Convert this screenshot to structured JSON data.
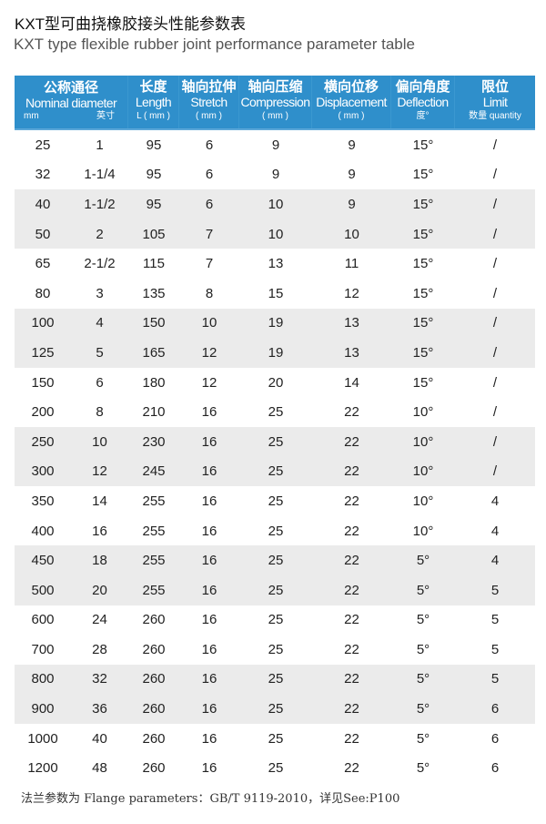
{
  "title_cn": "KXT型可曲挠橡胶接头性能参数表",
  "title_en": "KXT type flexible rubber joint performance parameter table",
  "header": {
    "nominal": {
      "cn": "公称通径",
      "en": "Nominal diameter",
      "mm": "mm",
      "inch": "英寸"
    },
    "length": {
      "cn": "长度",
      "en": "Length",
      "unit": "L ( mm )"
    },
    "stretch": {
      "cn": "轴向拉伸",
      "en": "Stretch",
      "unit": "( mm )"
    },
    "compression": {
      "cn": "轴向压缩",
      "en": "Compression",
      "unit": "( mm )"
    },
    "displacement": {
      "cn": "横向位移",
      "en": "Displacement",
      "unit": "( mm )"
    },
    "deflection": {
      "cn": "偏向角度",
      "en": "Deflection",
      "unit": "度°"
    },
    "limit": {
      "cn": "限位",
      "en": "Limit",
      "unit": "数量 quantity"
    }
  },
  "rows": [
    [
      "25",
      "1",
      "95",
      "6",
      "9",
      "9",
      "15°",
      "/"
    ],
    [
      "32",
      "1-1/4",
      "95",
      "6",
      "9",
      "9",
      "15°",
      "/"
    ],
    [
      "40",
      "1-1/2",
      "95",
      "6",
      "10",
      "9",
      "15°",
      "/"
    ],
    [
      "50",
      "2",
      "105",
      "7",
      "10",
      "10",
      "15°",
      "/"
    ],
    [
      "65",
      "2-1/2",
      "115",
      "7",
      "13",
      "11",
      "15°",
      "/"
    ],
    [
      "80",
      "3",
      "135",
      "8",
      "15",
      "12",
      "15°",
      "/"
    ],
    [
      "100",
      "4",
      "150",
      "10",
      "19",
      "13",
      "15°",
      "/"
    ],
    [
      "125",
      "5",
      "165",
      "12",
      "19",
      "13",
      "15°",
      "/"
    ],
    [
      "150",
      "6",
      "180",
      "12",
      "20",
      "14",
      "15°",
      "/"
    ],
    [
      "200",
      "8",
      "210",
      "16",
      "25",
      "22",
      "10°",
      "/"
    ],
    [
      "250",
      "10",
      "230",
      "16",
      "25",
      "22",
      "10°",
      "/"
    ],
    [
      "300",
      "12",
      "245",
      "16",
      "25",
      "22",
      "10°",
      "/"
    ],
    [
      "350",
      "14",
      "255",
      "16",
      "25",
      "22",
      "10°",
      "4"
    ],
    [
      "400",
      "16",
      "255",
      "16",
      "25",
      "22",
      "10°",
      "4"
    ],
    [
      "450",
      "18",
      "255",
      "16",
      "25",
      "22",
      "5°",
      "4"
    ],
    [
      "500",
      "20",
      "255",
      "16",
      "25",
      "22",
      "5°",
      "5"
    ],
    [
      "600",
      "24",
      "260",
      "16",
      "25",
      "22",
      "5°",
      "5"
    ],
    [
      "700",
      "28",
      "260",
      "16",
      "25",
      "22",
      "5°",
      "5"
    ],
    [
      "800",
      "32",
      "260",
      "16",
      "25",
      "22",
      "5°",
      "5"
    ],
    [
      "900",
      "36",
      "260",
      "16",
      "25",
      "22",
      "5°",
      "6"
    ],
    [
      "1000",
      "40",
      "260",
      "16",
      "25",
      "22",
      "5°",
      "6"
    ],
    [
      "1200",
      "48",
      "260",
      "16",
      "25",
      "22",
      "5°",
      "6"
    ]
  ],
  "footer": "法兰参数为 Flange parameters：GB/T 9119-2010，详见See:P100",
  "colors": {
    "header_bg": "#2f8fcb",
    "stripe": "#ebebeb"
  }
}
